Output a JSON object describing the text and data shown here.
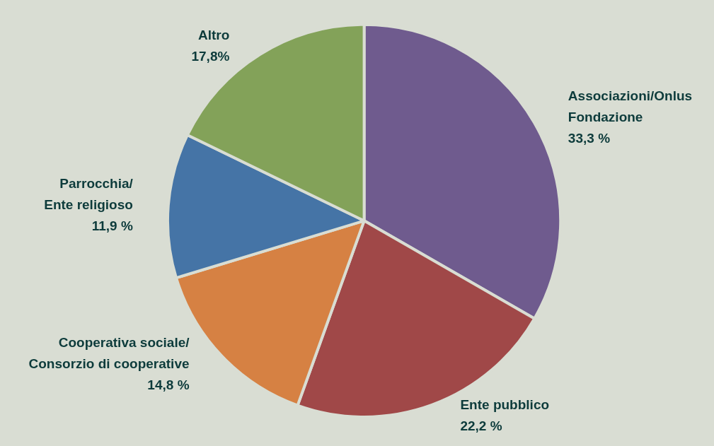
{
  "chart_data": {
    "type": "pie",
    "categories": [
      "Associazioni/Onlus\nFondazione",
      "Ente pubblico",
      "Cooperativa sociale/\nConsorzio di cooperative",
      "Parrocchia/\nEnte religioso",
      "Altro"
    ],
    "values": [
      33.3,
      22.2,
      14.8,
      11.9,
      17.8
    ],
    "value_labels": [
      "33,3 %",
      "22,2 %",
      "14,8 %",
      "11,9 %",
      "17,8%"
    ],
    "colors": [
      "#6f5b8e",
      "#a04848",
      "#d68143",
      "#4574a6",
      "#83a259"
    ],
    "legend": false
  }
}
